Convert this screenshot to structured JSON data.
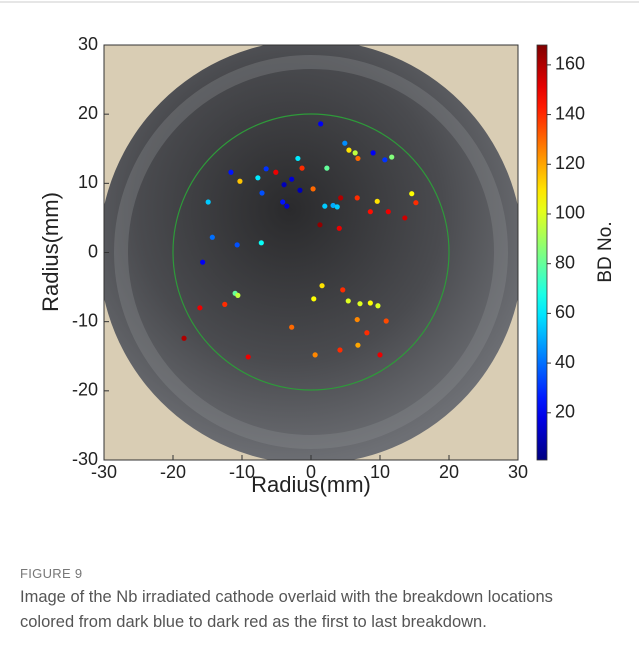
{
  "chart_data": {
    "type": "scatter",
    "xlabel": "Radius(mm)",
    "ylabel": "Radius(mm)",
    "x": [
      1.4,
      4.9,
      5.5,
      6.4,
      6.8,
      9.0,
      10.7,
      11.7,
      -1.9,
      -1.3,
      2.3,
      -6.5,
      -5.1,
      -11.6,
      -10.3,
      -3.9,
      -2.8,
      -1.6,
      0.3,
      -7.1,
      -4.1,
      -3.5,
      2.0,
      3.2,
      3.8,
      4.3,
      6.7,
      8.6,
      9.6,
      11.2,
      14.6,
      15.2,
      13.6,
      1.3,
      4.1,
      -10.7,
      -7.2,
      -15.7,
      -11.0,
      -10.6,
      -12.5,
      -16.1,
      -18.4,
      -9.1,
      -2.8,
      0.4,
      1.6,
      4.6,
      5.4,
      7.1,
      8.6,
      9.7,
      6.7,
      8.1,
      10.9,
      6.8,
      10.0,
      0.6,
      4.2,
      -7.7,
      -14.9,
      -14.3
    ],
    "y": [
      18.6,
      15.8,
      14.8,
      14.4,
      13.6,
      14.4,
      13.4,
      13.8,
      13.6,
      12.2,
      12.2,
      12.1,
      11.6,
      11.6,
      10.3,
      9.8,
      10.6,
      9.0,
      9.2,
      8.6,
      7.3,
      6.7,
      6.7,
      6.8,
      6.6,
      7.9,
      7.9,
      5.9,
      7.4,
      5.9,
      8.5,
      7.2,
      5.0,
      4.0,
      3.5,
      1.1,
      1.4,
      -1.4,
      -5.9,
      -6.2,
      -7.5,
      -8.0,
      -12.4,
      -15.1,
      -10.8,
      -6.7,
      -4.8,
      -5.4,
      -7.0,
      -7.4,
      -7.3,
      -7.7,
      -9.7,
      -11.6,
      -9.9,
      -13.4,
      -14.8,
      -14.8,
      -14.1,
      10.8,
      7.3,
      2.2
    ],
    "c": [
      20,
      45,
      110,
      95,
      130,
      20,
      30,
      85,
      60,
      140,
      80,
      30,
      150,
      25,
      115,
      10,
      15,
      10,
      130,
      35,
      25,
      15,
      55,
      50,
      55,
      160,
      140,
      145,
      110,
      150,
      105,
      140,
      155,
      165,
      150,
      35,
      65,
      20,
      80,
      95,
      140,
      150,
      160,
      150,
      130,
      105,
      110,
      140,
      100,
      100,
      105,
      100,
      125,
      140,
      135,
      120,
      150,
      125,
      140,
      60,
      55,
      40
    ],
    "xlim": [
      -30,
      30
    ],
    "ylim": [
      -30,
      30
    ],
    "xticks": [
      -30,
      -20,
      -10,
      0,
      10,
      20,
      30
    ],
    "yticks": [
      -30,
      -20,
      -10,
      0,
      10,
      20,
      30
    ],
    "colorbar": {
      "label": "BD No.",
      "lim": [
        1,
        168
      ],
      "ticks": [
        20,
        40,
        60,
        80,
        100,
        120,
        140,
        160
      ],
      "colormap": "jet"
    }
  },
  "caption": {
    "label": "FIGURE 9",
    "text": "Image of the Nb irradiated cathode overlaid with the breakdown locations colored from dark blue to dark red as the first to last breakdown."
  }
}
